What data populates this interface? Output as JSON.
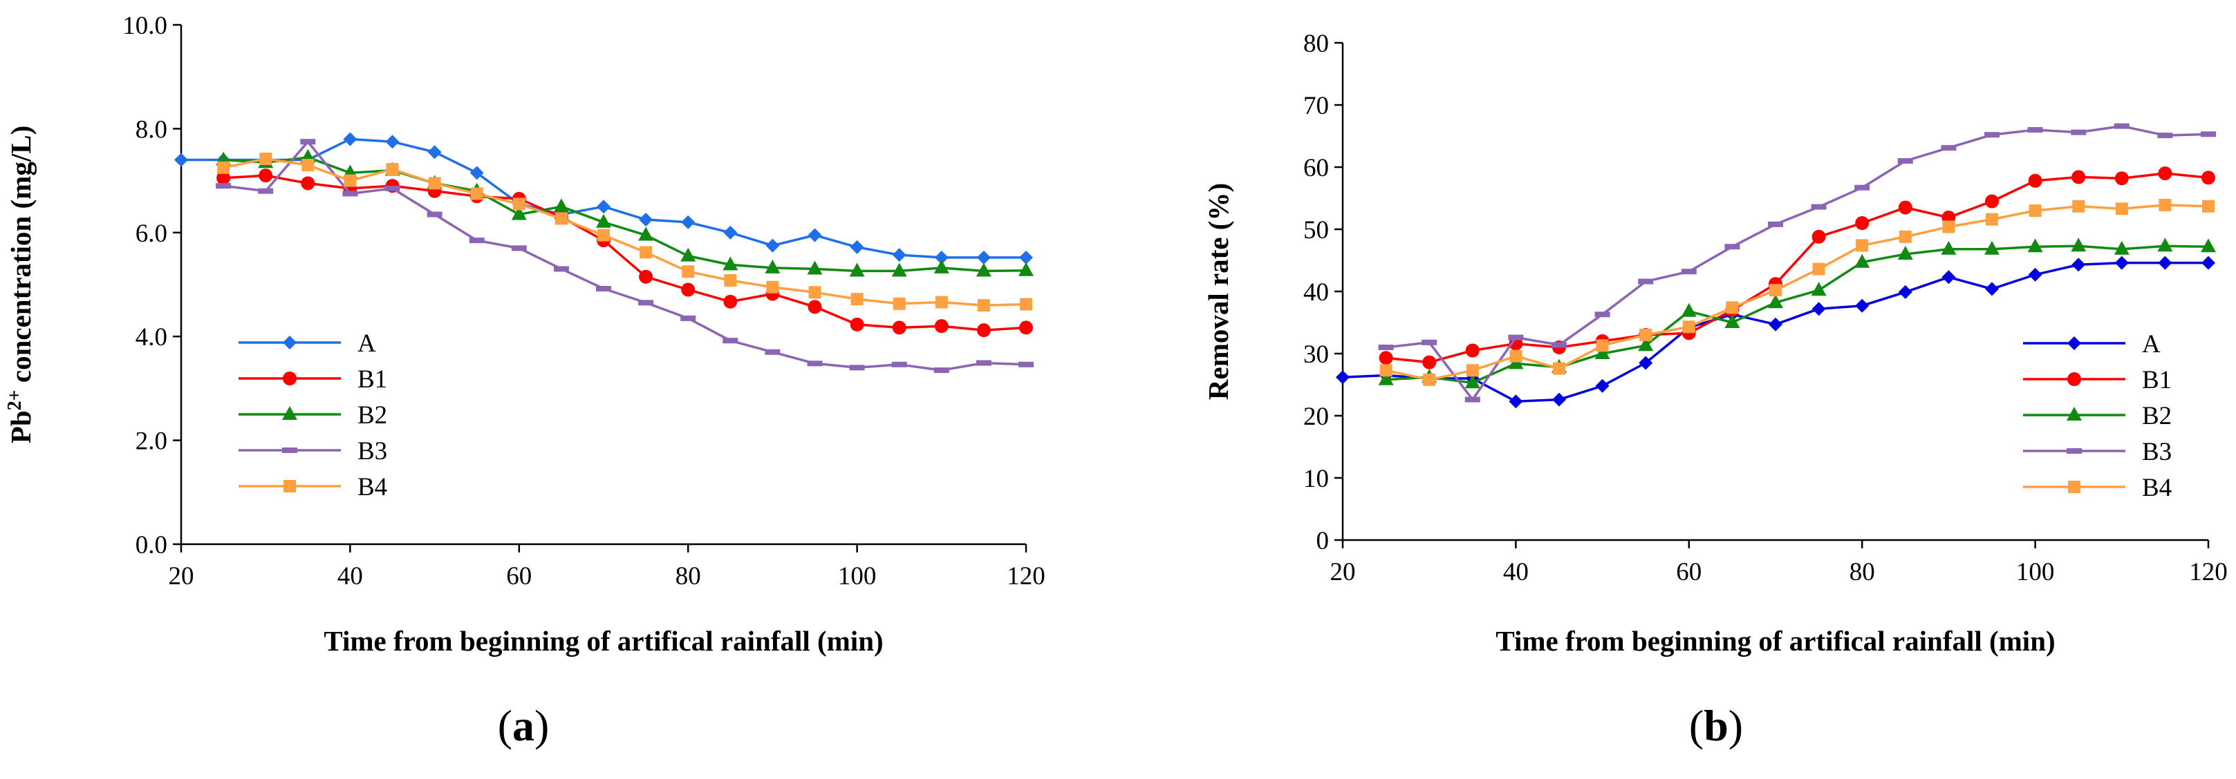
{
  "chart_data": [
    {
      "type": "line",
      "panel_label": "a",
      "title": "",
      "ylabel": {
        "prefix": "Pb",
        "superscript": "2+",
        "suffix": " concentration (mg/L)"
      },
      "xlabel": "Time from beginning of artifical rainfall (min)",
      "xlim": [
        20,
        120
      ],
      "ylim": [
        0,
        10
      ],
      "xticks": [
        "20",
        "40",
        "60",
        "80",
        "100",
        "120"
      ],
      "yticks": [
        "0.0",
        "2.0",
        "4.0",
        "6.0",
        "8.0",
        "10.0"
      ],
      "legend_position": "bottom-left",
      "series": [
        {
          "name": "A",
          "color": "#1f6fe8",
          "marker": "diamond",
          "x": [
            20,
            25,
            30,
            35,
            40,
            45,
            50,
            55,
            60,
            65,
            70,
            75,
            80,
            85,
            90,
            95,
            100,
            105,
            110,
            115,
            120
          ],
          "y": [
            7.4,
            7.4,
            7.4,
            7.4,
            7.8,
            7.75,
            7.55,
            7.15,
            6.55,
            6.35,
            6.5,
            6.25,
            6.2,
            6.0,
            5.75,
            5.95,
            5.72,
            5.57,
            5.52,
            5.52,
            5.52
          ]
        },
        {
          "name": "B1",
          "color": "#ff0000",
          "marker": "circle",
          "x": [
            25,
            30,
            35,
            40,
            45,
            50,
            55,
            60,
            65,
            70,
            75,
            80,
            85,
            90,
            95,
            100,
            105,
            110,
            115,
            120
          ],
          "y": [
            7.05,
            7.1,
            6.95,
            6.85,
            6.9,
            6.8,
            6.7,
            6.65,
            6.3,
            5.85,
            5.15,
            4.9,
            4.67,
            4.82,
            4.57,
            4.23,
            4.17,
            4.2,
            4.12,
            4.17
          ]
        },
        {
          "name": "B2",
          "color": "#128a12",
          "marker": "triangle",
          "x": [
            25,
            30,
            35,
            40,
            45,
            50,
            55,
            60,
            65,
            70,
            75,
            80,
            85,
            90,
            95,
            100,
            105,
            110,
            115,
            120
          ],
          "y": [
            7.4,
            7.35,
            7.45,
            7.15,
            7.2,
            6.95,
            6.8,
            6.35,
            6.5,
            6.2,
            5.95,
            5.55,
            5.38,
            5.32,
            5.3,
            5.26,
            5.26,
            5.32,
            5.26,
            5.27
          ]
        },
        {
          "name": "B3",
          "color": "#8c64b4",
          "marker": "dash",
          "x": [
            25,
            30,
            35,
            40,
            45,
            50,
            55,
            60,
            65,
            70,
            75,
            80,
            85,
            90,
            95,
            100,
            105,
            110,
            115,
            120
          ],
          "y": [
            6.9,
            6.8,
            7.75,
            6.75,
            6.85,
            6.35,
            5.85,
            5.7,
            5.3,
            4.92,
            4.65,
            4.35,
            3.92,
            3.7,
            3.48,
            3.4,
            3.46,
            3.35,
            3.49,
            3.46
          ]
        },
        {
          "name": "B4",
          "color": "#ffa040",
          "marker": "square",
          "x": [
            25,
            30,
            35,
            40,
            45,
            50,
            55,
            60,
            65,
            70,
            75,
            80,
            85,
            90,
            95,
            100,
            105,
            110,
            115,
            120
          ],
          "y": [
            7.25,
            7.42,
            7.3,
            7.0,
            7.22,
            6.95,
            6.75,
            6.55,
            6.27,
            5.95,
            5.62,
            5.25,
            5.08,
            4.95,
            4.85,
            4.72,
            4.63,
            4.66,
            4.6,
            4.62
          ]
        }
      ]
    },
    {
      "type": "line",
      "panel_label": "b",
      "title": "",
      "ylabel": {
        "prefix": "Removal rate (%)",
        "superscript": "",
        "suffix": ""
      },
      "xlabel": "Time from beginning of artifical rainfall (min)",
      "xlim": [
        20,
        120
      ],
      "ylim": [
        0,
        80
      ],
      "xticks": [
        "20",
        "40",
        "60",
        "80",
        "100",
        "120"
      ],
      "yticks": [
        "0",
        "10",
        "20",
        "30",
        "40",
        "50",
        "60",
        "70",
        "80"
      ],
      "legend_position": "bottom-right",
      "series": [
        {
          "name": "A",
          "color": "#0000e0",
          "marker": "diamond",
          "x": [
            20,
            25,
            30,
            35,
            40,
            45,
            50,
            55,
            60,
            65,
            70,
            75,
            80,
            85,
            90,
            95,
            100,
            105,
            110,
            115,
            120
          ],
          "y": [
            26.2,
            26.5,
            26.0,
            26.0,
            22.3,
            22.6,
            24.8,
            28.5,
            34.2,
            36.3,
            34.7,
            37.2,
            37.7,
            39.9,
            42.3,
            40.4,
            42.7,
            44.3,
            44.6,
            44.6,
            44.6
          ]
        },
        {
          "name": "B1",
          "color": "#ff0000",
          "marker": "circle",
          "x": [
            25,
            30,
            35,
            40,
            45,
            50,
            55,
            60,
            65,
            70,
            75,
            80,
            85,
            90,
            95,
            100,
            105,
            110,
            115,
            120
          ],
          "y": [
            29.3,
            28.6,
            30.5,
            31.6,
            31.0,
            32.0,
            33.0,
            33.3,
            37.0,
            41.2,
            48.8,
            51.0,
            53.5,
            51.9,
            54.5,
            57.8,
            58.4,
            58.2,
            59.0,
            58.3
          ]
        },
        {
          "name": "B2",
          "color": "#128a12",
          "marker": "triangle",
          "x": [
            25,
            30,
            35,
            40,
            45,
            50,
            55,
            60,
            65,
            70,
            75,
            80,
            85,
            90,
            95,
            100,
            105,
            110,
            115,
            120
          ],
          "y": [
            25.8,
            26.2,
            25.3,
            28.4,
            27.8,
            30.0,
            31.3,
            36.8,
            35.0,
            38.2,
            40.2,
            44.7,
            46.0,
            46.8,
            46.8,
            47.2,
            47.3,
            46.8,
            47.3,
            47.2
          ]
        },
        {
          "name": "B3",
          "color": "#8c64b4",
          "marker": "dash",
          "x": [
            25,
            30,
            35,
            40,
            45,
            50,
            55,
            60,
            65,
            70,
            75,
            80,
            85,
            90,
            95,
            100,
            105,
            110,
            115,
            120
          ],
          "y": [
            31.0,
            31.8,
            22.6,
            32.6,
            31.4,
            36.3,
            41.6,
            43.2,
            47.2,
            50.8,
            53.6,
            56.7,
            61.0,
            63.1,
            65.2,
            66.0,
            65.6,
            66.6,
            65.1,
            65.3
          ]
        },
        {
          "name": "B4",
          "color": "#ffa040",
          "marker": "square",
          "x": [
            25,
            30,
            35,
            40,
            45,
            50,
            55,
            60,
            65,
            70,
            75,
            80,
            85,
            90,
            95,
            100,
            105,
            110,
            115,
            120
          ],
          "y": [
            27.3,
            25.8,
            27.3,
            29.6,
            27.6,
            31.3,
            33.0,
            34.3,
            37.4,
            40.2,
            43.6,
            47.4,
            48.8,
            50.4,
            51.6,
            53.0,
            53.7,
            53.3,
            53.9,
            53.7
          ]
        }
      ]
    }
  ]
}
